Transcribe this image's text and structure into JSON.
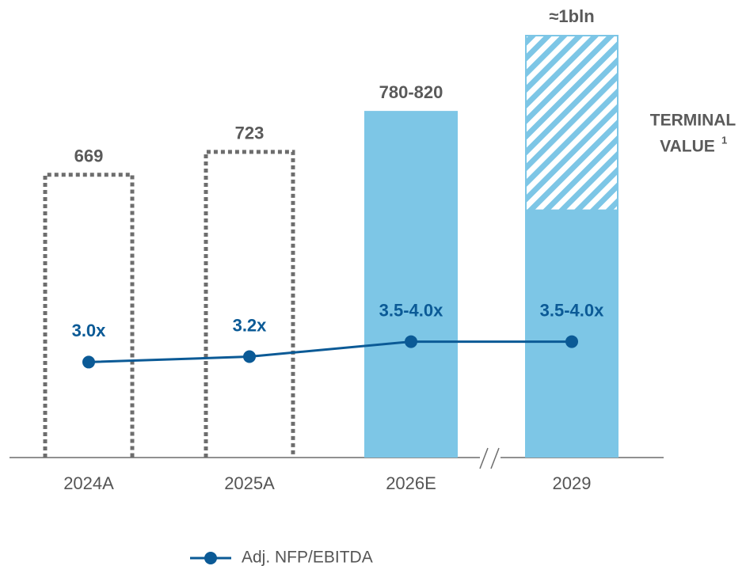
{
  "chart_data": {
    "type": "bar",
    "categories": [
      "2024A",
      "2025A",
      "2026E",
      "2029"
    ],
    "bars": {
      "values": [
        669,
        723,
        820,
        585
      ],
      "styles": [
        "dotted",
        "dotted",
        "solid",
        "solid"
      ],
      "color": "#7dc6e6",
      "outline_color": "#6d6d6d"
    },
    "terminal": {
      "label": "TERMINAL",
      "label2": "VALUE",
      "superscript": "1",
      "values": [
        null,
        null,
        null,
        415
      ],
      "color": "#7dc6e6"
    },
    "total_labels": [
      "669",
      "723",
      "780-820",
      "≈1bln"
    ],
    "series": [
      {
        "name": "Adj. NFP/EBITDA",
        "color": "#0b5a96",
        "axis": "y2",
        "values": [
          3.0,
          3.2,
          3.75,
          3.75
        ],
        "value_labels": [
          "3.0x",
          "3.2x",
          "3.5-4.0x",
          "3.5-4.0x"
        ]
      }
    ],
    "ylim": [
      0,
      1000
    ],
    "y2lim": [
      -0.5,
      15
    ]
  }
}
